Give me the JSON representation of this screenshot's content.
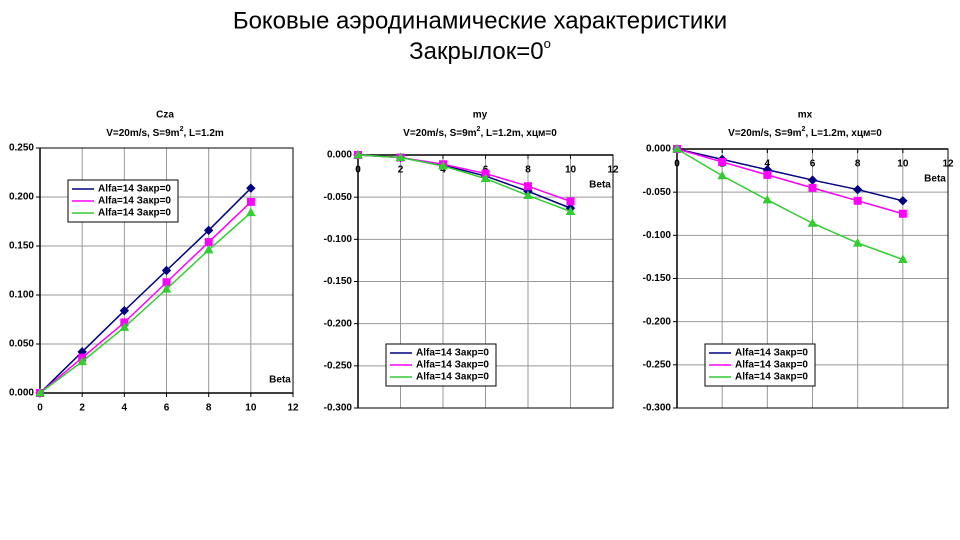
{
  "slide": {
    "title": "Боковые аэродинамические характеристики",
    "subtitle": [
      "Закрылок=0",
      "o"
    ]
  },
  "chart_data": [
    {
      "type": "line",
      "title": "Cza",
      "subtitle": [
        "V=20m/s, S=9m",
        "2",
        ", L=1.2m"
      ],
      "x_label": "Beta",
      "x": [
        0,
        2,
        4,
        6,
        8,
        10
      ],
      "xlim": [
        0,
        12
      ],
      "xticks": [
        0,
        2,
        4,
        6,
        8,
        10,
        12
      ],
      "ylim": [
        0,
        0.25
      ],
      "yticks": [
        {
          "value": 0,
          "label": "0.000"
        },
        {
          "value": 0.05,
          "label": "0.050"
        },
        {
          "value": 0.1,
          "label": "0.100"
        },
        {
          "value": 0.15,
          "label": "0.150"
        },
        {
          "value": 0.2,
          "label": "0.200"
        },
        {
          "value": 0.25,
          "label": "0.250"
        }
      ],
      "grid": true,
      "legend": "upper left",
      "series": [
        {
          "name": "Alfa=14 Закр=0",
          "color": "#000080",
          "marker": "diamond",
          "values": [
            0,
            0.042,
            0.084,
            0.125,
            0.166,
            0.209
          ]
        },
        {
          "name": "Alfa=14 Закр=0",
          "color": "#ff00ff",
          "marker": "square",
          "values": [
            0,
            0.036,
            0.072,
            0.113,
            0.154,
            0.195
          ]
        },
        {
          "name": "Alfa=14 Закр=0",
          "color": "#33cc33",
          "marker": "triangle",
          "values": [
            0,
            0.032,
            0.067,
            0.106,
            0.146,
            0.184
          ]
        }
      ]
    },
    {
      "type": "line",
      "title": "my",
      "subtitle": [
        "V=20m/s, S=9m",
        "2",
        ", L=1.2m, хцм=0"
      ],
      "x_label": "Beta",
      "x": [
        0,
        2,
        4,
        6,
        8,
        10
      ],
      "xlim": [
        0,
        12
      ],
      "xticks": [
        0,
        2,
        4,
        6,
        8,
        10,
        12
      ],
      "ylim": [
        -0.3,
        0
      ],
      "yticks": [
        {
          "value": 0,
          "label": "0.000"
        },
        {
          "value": -0.05,
          "label": "-0.050"
        },
        {
          "value": -0.1,
          "label": "-0.100"
        },
        {
          "value": -0.15,
          "label": "-0.150"
        },
        {
          "value": -0.2,
          "label": "-0.200"
        },
        {
          "value": -0.25,
          "label": "-0.250"
        },
        {
          "value": -0.3,
          "label": "-0.300"
        }
      ],
      "grid": true,
      "legend": "lower left",
      "series": [
        {
          "name": "Alfa=14 Закр=0",
          "color": "#000080",
          "marker": "diamond",
          "values": [
            0,
            -0.003,
            -0.012,
            -0.025,
            -0.043,
            -0.063
          ]
        },
        {
          "name": "Alfa=14 Закр=0",
          "color": "#ff00ff",
          "marker": "square",
          "values": [
            0,
            -0.003,
            -0.011,
            -0.022,
            -0.037,
            -0.055
          ]
        },
        {
          "name": "Alfa=14 Закр=0",
          "color": "#33cc33",
          "marker": "triangle",
          "values": [
            0,
            -0.003,
            -0.013,
            -0.028,
            -0.048,
            -0.067
          ]
        }
      ]
    },
    {
      "type": "line",
      "title": "mx",
      "subtitle": [
        "V=20m/s, S=9m",
        "2",
        ", L=1.2m, хцм=0"
      ],
      "x_label": "Beta",
      "x": [
        0,
        2,
        4,
        6,
        8,
        10
      ],
      "xlim": [
        0,
        12
      ],
      "xticks": [
        0,
        2,
        4,
        6,
        8,
        10,
        12
      ],
      "ylim": [
        -0.3,
        0
      ],
      "yticks": [
        {
          "value": 0,
          "label": "0.000"
        },
        {
          "value": -0.05,
          "label": "-0.050"
        },
        {
          "value": -0.1,
          "label": "-0.100"
        },
        {
          "value": -0.15,
          "label": "-0.150"
        },
        {
          "value": -0.2,
          "label": "-0.200"
        },
        {
          "value": -0.25,
          "label": "-0.250"
        },
        {
          "value": -0.3,
          "label": "-0.300"
        }
      ],
      "grid": true,
      "legend": "lower left",
      "series": [
        {
          "name": "Alfa=14 Закр=0",
          "color": "#000080",
          "marker": "diamond",
          "values": [
            0,
            -0.012,
            -0.024,
            -0.036,
            -0.047,
            -0.06
          ]
        },
        {
          "name": "Alfa=14 Закр=0",
          "color": "#ff00ff",
          "marker": "square",
          "values": [
            0,
            -0.015,
            -0.03,
            -0.045,
            -0.06,
            -0.075
          ]
        },
        {
          "name": "Alfa=14 Закр=0",
          "color": "#33cc33",
          "marker": "triangle",
          "values": [
            0,
            -0.031,
            -0.059,
            -0.086,
            -0.109,
            -0.128
          ]
        }
      ]
    }
  ]
}
